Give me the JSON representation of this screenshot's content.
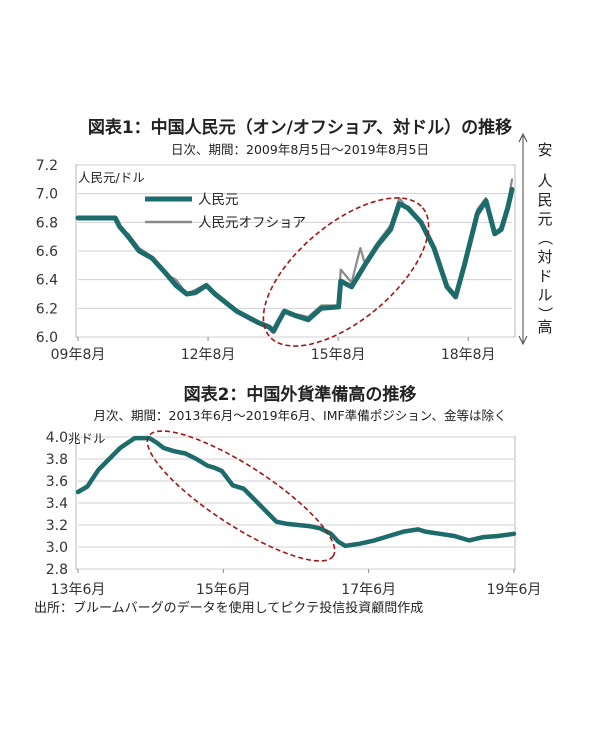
{
  "chart_data": [
    {
      "type": "line",
      "title": "図表1：中国人民元（オン/オフショア、対ドル）の推移",
      "subtitle": "日次、期間：2009年8月5日～2019年8月5日",
      "ylabel": "人民元/ドル",
      "ylim": [
        6.0,
        7.2
      ],
      "yticks": [
        "6.0",
        "6.2",
        "6.4",
        "6.6",
        "6.8",
        "7.0",
        "7.2"
      ],
      "xlim": [
        2009.59,
        2019.6
      ],
      "xticks": [
        {
          "x": 2009.59,
          "label": "09年8月"
        },
        {
          "x": 2012.59,
          "label": "12年8月"
        },
        {
          "x": 2015.59,
          "label": "15年8月"
        },
        {
          "x": 2018.59,
          "label": "18年8月"
        }
      ],
      "side_labels": {
        "top": "安",
        "middle": "人民元（対ドル）",
        "bottom": "高"
      },
      "legend_position": "top-left",
      "series": [
        {
          "name": "人民元",
          "color": "#1e6b6b",
          "x": [
            2009.59,
            2010.0,
            2010.45,
            2010.55,
            2010.75,
            2011.0,
            2011.3,
            2011.6,
            2011.85,
            2012.1,
            2012.3,
            2012.55,
            2012.75,
            2013.0,
            2013.25,
            2013.5,
            2013.75,
            2014.0,
            2014.1,
            2014.2,
            2014.35,
            2014.6,
            2014.9,
            2015.2,
            2015.6,
            2015.65,
            2015.9,
            2016.2,
            2016.5,
            2016.8,
            2017.0,
            2017.2,
            2017.5,
            2017.8,
            2018.1,
            2018.3,
            2018.5,
            2018.8,
            2019.0,
            2019.2,
            2019.35,
            2019.5,
            2019.6
          ],
          "y": [
            6.83,
            6.83,
            6.83,
            6.77,
            6.7,
            6.6,
            6.55,
            6.45,
            6.36,
            6.3,
            6.31,
            6.36,
            6.3,
            6.24,
            6.18,
            6.14,
            6.1,
            6.07,
            6.04,
            6.1,
            6.18,
            6.15,
            6.12,
            6.2,
            6.21,
            6.39,
            6.35,
            6.5,
            6.64,
            6.75,
            6.93,
            6.9,
            6.8,
            6.62,
            6.35,
            6.28,
            6.5,
            6.86,
            6.95,
            6.72,
            6.75,
            6.9,
            7.03
          ]
        },
        {
          "name": "人民元オフショア",
          "color": "#8a8a8a",
          "x": [
            2010.75,
            2011.0,
            2011.3,
            2011.6,
            2011.85,
            2012.1,
            2012.3,
            2012.55,
            2012.75,
            2013.0,
            2013.25,
            2013.5,
            2013.75,
            2014.0,
            2014.1,
            2014.2,
            2014.35,
            2014.6,
            2014.9,
            2015.2,
            2015.6,
            2015.65,
            2015.9,
            2016.1,
            2016.2,
            2016.5,
            2016.8,
            2017.0,
            2017.2,
            2017.5,
            2017.8,
            2018.1,
            2018.3,
            2018.5,
            2018.8,
            2019.0,
            2019.2,
            2019.35,
            2019.5,
            2019.6
          ],
          "y": [
            6.72,
            6.62,
            6.56,
            6.44,
            6.4,
            6.3,
            6.33,
            6.37,
            6.3,
            6.24,
            6.17,
            6.13,
            6.09,
            6.06,
            6.03,
            6.12,
            6.19,
            6.16,
            6.14,
            6.22,
            6.22,
            6.47,
            6.38,
            6.62,
            6.52,
            6.66,
            6.78,
            6.97,
            6.89,
            6.81,
            6.6,
            6.34,
            6.3,
            6.52,
            6.89,
            6.97,
            6.72,
            6.77,
            6.92,
            7.1
          ]
        }
      ]
    },
    {
      "type": "line",
      "title": "図表2：中国外貨準備高の推移",
      "subtitle": "月次、期間：2013年6月～2019年6月、IMF準備ポジション、金等は除く",
      "ylabel": "兆ドル",
      "ylim": [
        2.8,
        4.0
      ],
      "yticks": [
        "2.8",
        "3.0",
        "3.2",
        "3.4",
        "3.6",
        "3.8",
        "4.0"
      ],
      "xlim": [
        2013.42,
        2019.42
      ],
      "xticks": [
        {
          "x": 2013.42,
          "label": "13年6月"
        },
        {
          "x": 2015.42,
          "label": "15年6月"
        },
        {
          "x": 2017.42,
          "label": "17年6月"
        },
        {
          "x": 2019.42,
          "label": "19年6月"
        }
      ],
      "series": [
        {
          "name": "外貨準備高",
          "color": "#1e6b6b",
          "x": [
            2013.42,
            2013.55,
            2013.7,
            2013.85,
            2014.0,
            2014.2,
            2014.4,
            2014.5,
            2014.6,
            2014.75,
            2014.9,
            2015.05,
            2015.2,
            2015.3,
            2015.4,
            2015.55,
            2015.7,
            2015.85,
            2016.0,
            2016.15,
            2016.3,
            2016.45,
            2016.6,
            2016.75,
            2016.9,
            2017.0,
            2017.1,
            2017.3,
            2017.5,
            2017.7,
            2017.9,
            2018.1,
            2018.2,
            2018.4,
            2018.6,
            2018.8,
            2019.0,
            2019.2,
            2019.42
          ],
          "y": [
            3.5,
            3.55,
            3.7,
            3.8,
            3.9,
            3.99,
            3.99,
            3.95,
            3.9,
            3.87,
            3.85,
            3.8,
            3.74,
            3.72,
            3.69,
            3.56,
            3.53,
            3.43,
            3.33,
            3.23,
            3.21,
            3.2,
            3.19,
            3.17,
            3.12,
            3.05,
            3.01,
            3.03,
            3.06,
            3.1,
            3.14,
            3.16,
            3.14,
            3.12,
            3.1,
            3.06,
            3.09,
            3.1,
            3.12
          ]
        }
      ]
    }
  ],
  "source": "出所：ブルームバーグのデータを使用してピクテ投信投資顧問作成"
}
